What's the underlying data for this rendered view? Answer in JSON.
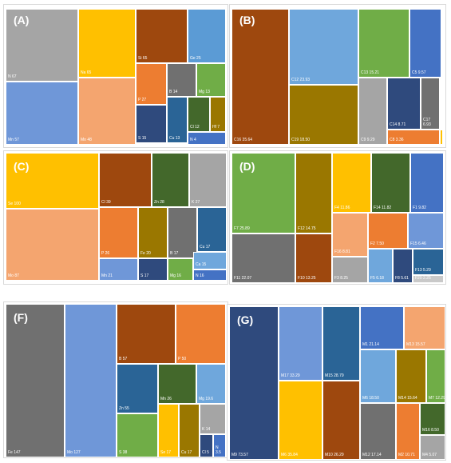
{
  "colors": {
    "gray": "#a5a5a5",
    "yellow": "#ffc000",
    "brown": "#9e480e",
    "blue": "#5b9bd5",
    "lightblue": "#6f97d8",
    "orange": "#ed7d31",
    "peach": "#f4a56f",
    "darkgray": "#707070",
    "green": "#70ad47",
    "navy": "#2f4a7d",
    "teal": "#2a6496",
    "olive": "#43682b",
    "gold": "#9a7700",
    "brightblue": "#4472c4",
    "sky": "#6fa7dc",
    "lightgray": "#c9c9c9"
  },
  "chart_data": [
    {
      "type": "treemap",
      "panel": "(A)",
      "items": [
        {
          "label": "N 67",
          "value": 67,
          "color": "gray"
        },
        {
          "label": "Na 65",
          "value": 65,
          "color": "yellow"
        },
        {
          "label": "Si 65",
          "value": 65,
          "color": "brown"
        },
        {
          "label": "Ge 25",
          "value": 25,
          "color": "blue"
        },
        {
          "label": "Mn 57",
          "value": 57,
          "color": "lightblue"
        },
        {
          "label": "Mo 48",
          "value": 48,
          "color": "peach"
        },
        {
          "label": "P 27",
          "value": 27,
          "color": "orange"
        },
        {
          "label": "B 14",
          "value": 14,
          "color": "darkgray"
        },
        {
          "label": "Mg 13",
          "value": 13,
          "color": "green"
        },
        {
          "label": "S 15",
          "value": 15,
          "color": "navy"
        },
        {
          "label": "Cu 13",
          "value": 13,
          "color": "teal"
        },
        {
          "label": "Cl 12",
          "value": 12,
          "color": "olive"
        },
        {
          "label": "Hf 7",
          "value": 7,
          "color": "gold"
        },
        {
          "label": "N 4",
          "value": 4,
          "color": "brightblue"
        }
      ]
    },
    {
      "type": "treemap",
      "panel": "(B)",
      "items": [
        {
          "label": "C16 35.64",
          "value": 35.64,
          "color": "brown"
        },
        {
          "label": "C12 23.93",
          "value": 23.93,
          "color": "sky"
        },
        {
          "label": "C19 18.50",
          "value": 18.5,
          "color": "gold"
        },
        {
          "label": "C13 15.21",
          "value": 15.21,
          "color": "green"
        },
        {
          "label": "C5 9.57",
          "value": 9.57,
          "color": "brightblue"
        },
        {
          "label": "C9 9.29",
          "value": 9.29,
          "color": "gray"
        },
        {
          "label": "C14 8.71",
          "value": 8.71,
          "color": "navy"
        },
        {
          "label": "C17\n6.93",
          "value": 6.93,
          "color": "darkgray"
        },
        {
          "label": "C8 3.36",
          "value": 3.36,
          "color": "orange"
        },
        {
          "label": "",
          "value": 0.3,
          "color": "yellow"
        }
      ]
    },
    {
      "type": "treemap",
      "panel": "(C)",
      "items": [
        {
          "label": "Se 100",
          "value": 100,
          "color": "yellow"
        },
        {
          "label": "Mo 87",
          "value": 87,
          "color": "peach"
        },
        {
          "label": "Cl 39",
          "value": 39,
          "color": "brown"
        },
        {
          "label": "Zn 28",
          "value": 28,
          "color": "olive"
        },
        {
          "label": "K 27",
          "value": 27,
          "color": "gray"
        },
        {
          "label": "P 26",
          "value": 26,
          "color": "orange"
        },
        {
          "label": "Fe 20",
          "value": 20,
          "color": "gold"
        },
        {
          "label": "B 17",
          "value": 17,
          "color": "darkgray"
        },
        {
          "label": "Cu 17",
          "value": 17,
          "color": "teal"
        },
        {
          "label": "Mn 21",
          "value": 21,
          "color": "lightblue"
        },
        {
          "label": "S 17",
          "value": 17,
          "color": "navy"
        },
        {
          "label": "Mg 16",
          "value": 16,
          "color": "green"
        },
        {
          "label": "Ca 15",
          "value": 15,
          "color": "sky"
        },
        {
          "label": "N 16",
          "value": 16,
          "color": "brightblue"
        }
      ]
    },
    {
      "type": "treemap",
      "panel": "(D)",
      "items": [
        {
          "label": "F7 25.89",
          "value": 25.89,
          "color": "green"
        },
        {
          "label": "F11 22.07",
          "value": 22.07,
          "color": "darkgray"
        },
        {
          "label": "F12 14.75",
          "value": 14.75,
          "color": "gold"
        },
        {
          "label": "F10 13.25",
          "value": 13.25,
          "color": "brown"
        },
        {
          "label": "F4 11.86",
          "value": 11.86,
          "color": "yellow"
        },
        {
          "label": "F14 11.82",
          "value": 11.82,
          "color": "olive"
        },
        {
          "label": "F1 9.82",
          "value": 9.82,
          "color": "brightblue"
        },
        {
          "label": "F16 8.81",
          "value": 8.81,
          "color": "peach"
        },
        {
          "label": "F2 7.50",
          "value": 7.5,
          "color": "orange"
        },
        {
          "label": "F15 6.46",
          "value": 6.46,
          "color": "lightblue"
        },
        {
          "label": "F3 8.25",
          "value": 8.25,
          "color": "gray"
        },
        {
          "label": "F5 6.18",
          "value": 6.18,
          "color": "sky"
        },
        {
          "label": "F8 5.61",
          "value": 5.61,
          "color": "navy"
        },
        {
          "label": "F13 5.29",
          "value": 5.29,
          "color": "teal"
        },
        {
          "label": "F20 2.25",
          "value": 2.25,
          "color": "lightgray"
        }
      ]
    },
    {
      "type": "treemap",
      "panel": "(F)",
      "items": [
        {
          "label": "Fe 147",
          "value": 147,
          "color": "darkgray"
        },
        {
          "label": "Mo 127",
          "value": 127,
          "color": "lightblue"
        },
        {
          "label": "B 57",
          "value": 57,
          "color": "brown"
        },
        {
          "label": "P 50",
          "value": 50,
          "color": "orange"
        },
        {
          "label": "Zn 55",
          "value": 55,
          "color": "teal"
        },
        {
          "label": "Mn 26",
          "value": 26,
          "color": "olive"
        },
        {
          "label": "Mg 19.6",
          "value": 19.6,
          "color": "sky"
        },
        {
          "label": "S 38",
          "value": 38,
          "color": "green"
        },
        {
          "label": "Se 17",
          "value": 17,
          "color": "yellow"
        },
        {
          "label": "Cu 17",
          "value": 17,
          "color": "gold"
        },
        {
          "label": "K 14",
          "value": 14,
          "color": "gray"
        },
        {
          "label": "Cl 5",
          "value": 5,
          "color": "navy"
        },
        {
          "label": "N\n3.5",
          "value": 3.5,
          "color": "brightblue"
        }
      ]
    },
    {
      "type": "treemap",
      "panel": "(G)",
      "items": [
        {
          "label": "M9 73.57",
          "value": 73.57,
          "color": "navy"
        },
        {
          "label": "M17 33.29",
          "value": 33.29,
          "color": "lightblue"
        },
        {
          "label": "M6 35.84",
          "value": 35.84,
          "color": "yellow"
        },
        {
          "label": "M15 28.79",
          "value": 28.79,
          "color": "teal"
        },
        {
          "label": "M10 26.29",
          "value": 26.29,
          "color": "brown"
        },
        {
          "label": "M1 21.14",
          "value": 21.14,
          "color": "brightblue"
        },
        {
          "label": "M13 15.57",
          "value": 15.57,
          "color": "peach"
        },
        {
          "label": "M6 18.50",
          "value": 18.5,
          "color": "sky"
        },
        {
          "label": "M14 15.64",
          "value": 15.64,
          "color": "gold"
        },
        {
          "label": "M7 12.29",
          "value": 12.29,
          "color": "green"
        },
        {
          "label": "M12 17.14",
          "value": 17.14,
          "color": "darkgray"
        },
        {
          "label": "M2 10.71",
          "value": 10.71,
          "color": "orange"
        },
        {
          "label": "M16 8.50",
          "value": 8.5,
          "color": "olive"
        },
        {
          "label": "M4 5.07",
          "value": 5.07,
          "color": "gray"
        }
      ]
    }
  ]
}
